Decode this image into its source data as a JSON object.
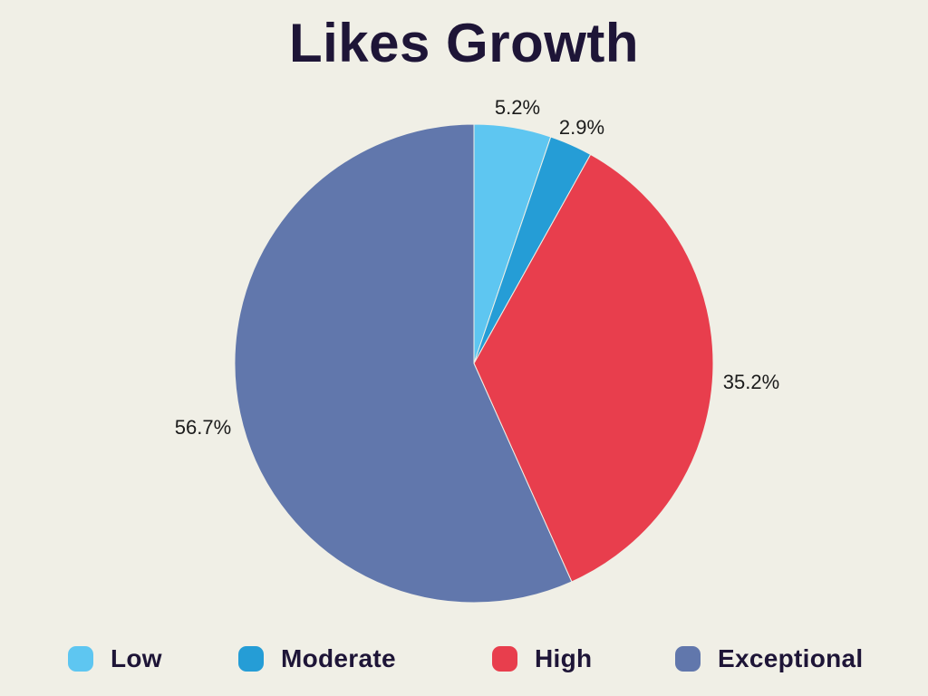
{
  "page": {
    "background": "#f0efe6",
    "title_color": "#1e1537",
    "percent_label_color": "#1b1b1b"
  },
  "chart_data": {
    "type": "pie",
    "title": "Likes Growth",
    "start_angle": "top",
    "direction": "clockwise",
    "legend_position": "bottom",
    "grid": false,
    "categories": [
      "Low",
      "Moderate",
      "High",
      "Exceptional"
    ],
    "values": [
      5.2,
      2.9,
      35.2,
      56.7
    ],
    "slices": [
      {
        "name": "Low",
        "value": 5.2,
        "label": "5.2%",
        "color": "#5ec6f1"
      },
      {
        "name": "Moderate",
        "value": 2.9,
        "label": "2.9%",
        "color": "#259dd6"
      },
      {
        "name": "High",
        "value": 35.2,
        "label": "35.2%",
        "color": "#e83e4d"
      },
      {
        "name": "Exceptional",
        "value": 56.7,
        "label": "56.7%",
        "color": "#6177ac"
      }
    ]
  }
}
